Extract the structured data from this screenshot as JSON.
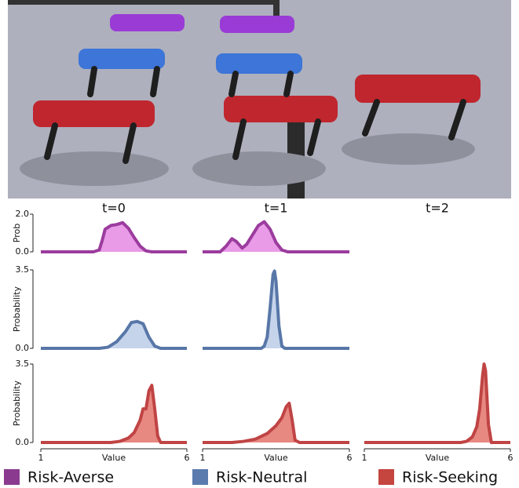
{
  "chart_data": [
    {
      "type": "area",
      "title": "t=0",
      "ylabel": "Prob",
      "xlim": [
        1,
        6
      ],
      "ylim": [
        0,
        2
      ],
      "yticks": [
        {
          "value": 0,
          "label": "0.0"
        },
        {
          "value": 2,
          "label": "2.0"
        }
      ],
      "x": [
        1,
        2.8,
        3.0,
        3.1,
        3.2,
        3.4,
        3.6,
        3.8,
        4.0,
        4.2,
        4.4,
        4.6,
        4.8,
        6
      ],
      "series": [
        {
          "color": "#9b3c9e",
          "fill": "#e58ae3",
          "values": [
            0,
            0,
            0.1,
            0.6,
            1.2,
            1.4,
            1.45,
            1.55,
            1.25,
            0.75,
            0.3,
            0.05,
            0,
            0
          ]
        }
      ]
    },
    {
      "type": "area",
      "title": "t=1",
      "xlim": [
        1,
        6
      ],
      "ylim": [
        0,
        2
      ],
      "x": [
        1,
        1.6,
        1.8,
        2.0,
        2.15,
        2.35,
        2.5,
        2.7,
        2.9,
        3.1,
        3.3,
        3.5,
        3.7,
        3.9,
        6
      ],
      "series": [
        {
          "color": "#9b3c9e",
          "fill": "#e58ae3",
          "values": [
            0,
            0,
            0.3,
            0.7,
            0.55,
            0.2,
            0.4,
            0.9,
            1.4,
            1.6,
            1.2,
            0.5,
            0.1,
            0,
            0
          ]
        }
      ]
    },
    {
      "type": "area",
      "ylabel": "Probability",
      "xlim": [
        1,
        6
      ],
      "ylim": [
        0,
        3.5
      ],
      "yticks": [
        {
          "value": 0,
          "label": "0.0"
        },
        3.5
      ],
      "x": [
        1,
        3.0,
        3.3,
        3.6,
        3.9,
        4.1,
        4.3,
        4.5,
        4.7,
        4.9,
        5.1,
        6
      ],
      "series": [
        {
          "color": "#5877a8",
          "fill": "#bccde8",
          "values": [
            0,
            0,
            0.05,
            0.3,
            0.75,
            1.15,
            1.2,
            1.1,
            0.5,
            0.1,
            0,
            0
          ]
        }
      ]
    },
    {
      "type": "area",
      "xlim": [
        1,
        6
      ],
      "ylim": [
        0,
        3.5
      ],
      "x": [
        1,
        3.0,
        3.1,
        3.2,
        3.3,
        3.4,
        3.45,
        3.5,
        3.6,
        3.7,
        3.8,
        6
      ],
      "series": [
        {
          "color": "#5877a8",
          "fill": "#bccde8",
          "values": [
            0,
            0,
            0.1,
            0.5,
            1.8,
            3.3,
            3.45,
            3.0,
            1.0,
            0.1,
            0,
            0
          ]
        }
      ]
    },
    {
      "type": "area",
      "ylabel": "Probability",
      "xlabel": "Value",
      "xlim": [
        1,
        6
      ],
      "ylim": [
        0,
        3.5
      ],
      "yticks": [
        {
          "value": 0,
          "label": "0.0"
        },
        3.5
      ],
      "xticks": [
        1,
        6
      ],
      "x": [
        1,
        3.4,
        3.7,
        4.0,
        4.2,
        4.4,
        4.5,
        4.6,
        4.7,
        4.8,
        4.9,
        5.0,
        5.1,
        6
      ],
      "series": [
        {
          "color": "#c04444",
          "fill": "#e3736b",
          "values": [
            0,
            0,
            0.05,
            0.2,
            0.45,
            1.0,
            1.5,
            1.5,
            2.3,
            2.55,
            1.5,
            0.3,
            0,
            0
          ]
        }
      ]
    },
    {
      "type": "area",
      "xlabel": "Value",
      "xlim": [
        1,
        6
      ],
      "ylim": [
        0,
        3.5
      ],
      "xticks": [
        1,
        6
      ],
      "x": [
        1,
        2.0,
        2.4,
        2.8,
        3.2,
        3.5,
        3.7,
        3.85,
        3.95,
        4.05,
        4.15,
        4.3,
        6
      ],
      "series": [
        {
          "color": "#c04444",
          "fill": "#e3736b",
          "values": [
            0,
            0,
            0.05,
            0.15,
            0.4,
            0.75,
            1.1,
            1.6,
            1.75,
            1.0,
            0.1,
            0,
            0
          ]
        }
      ]
    },
    {
      "type": "area",
      "title": "t=2",
      "xlabel": "Value",
      "xlim": [
        1,
        6
      ],
      "ylim": [
        0,
        3.5
      ],
      "xticks": [
        1,
        6
      ],
      "x": [
        1,
        4.3,
        4.5,
        4.7,
        4.85,
        4.95,
        5.05,
        5.1,
        5.15,
        5.25,
        5.35,
        6
      ],
      "series": [
        {
          "color": "#c04444",
          "fill": "#e3736b",
          "values": [
            0,
            0,
            0.05,
            0.25,
            0.7,
            1.5,
            3.0,
            3.5,
            3.2,
            0.8,
            0,
            0
          ]
        }
      ]
    }
  ],
  "legend": [
    {
      "label": "Risk-Averse",
      "color": "#8a3a8f"
    },
    {
      "label": "Risk-Neutral",
      "color": "#5b7baf"
    },
    {
      "label": "Risk-Seeking",
      "color": "#c5453f"
    }
  ]
}
